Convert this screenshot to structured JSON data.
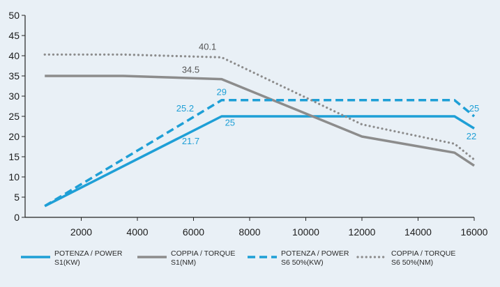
{
  "chart_data": {
    "type": "line",
    "title": "",
    "xlabel": "",
    "ylabel": "",
    "xlim": [
      0,
      16000
    ],
    "ylim": [
      0,
      50
    ],
    "xticks": [
      2000,
      4000,
      6000,
      8000,
      10000,
      12000,
      14000,
      16000
    ],
    "yticks": [
      0,
      5,
      10,
      15,
      20,
      25,
      30,
      35,
      40,
      45,
      50
    ],
    "grid": false,
    "legend_position": "bottom",
    "series": [
      {
        "name_lines": [
          "POTENZA / POWER",
          "S1(KW)"
        ],
        "color": "#1e9fd6",
        "style": "solid",
        "x": [
          700,
          7000,
          15300,
          16000
        ],
        "y": [
          2.8,
          25,
          25,
          22
        ]
      },
      {
        "name_lines": [
          "COPPIA / TORQUE",
          "S1(NM)"
        ],
        "color": "#8c8c8c",
        "style": "solid",
        "x": [
          700,
          3500,
          7000,
          12000,
          15300,
          16000
        ],
        "y": [
          35,
          35,
          34.2,
          20,
          16,
          12.8
        ]
      },
      {
        "name_lines": [
          "POTENZA / POWER",
          "S6 50%(KW)"
        ],
        "color": "#1e9fd6",
        "style": "dashed",
        "x": [
          700,
          7000,
          15300,
          16000
        ],
        "y": [
          2.8,
          29,
          29,
          25
        ]
      },
      {
        "name_lines": [
          "COPPIA / TORQUE",
          "S6 50%(NM)"
        ],
        "color": "#8c8c8c",
        "style": "dotted",
        "x": [
          700,
          3500,
          7000,
          12000,
          15300,
          16000
        ],
        "y": [
          40.3,
          40.3,
          39.6,
          23,
          18.2,
          14.3
        ]
      }
    ],
    "annotations": [
      {
        "text": "40.1",
        "x": 6500,
        "y": 41.5,
        "color": "#555555"
      },
      {
        "text": "34.5",
        "x": 5900,
        "y": 35.8,
        "color": "#555555"
      },
      {
        "text": "29",
        "x": 7000,
        "y": 30.3,
        "color": "#1e9fd6"
      },
      {
        "text": "25.2",
        "x": 5700,
        "y": 26.2,
        "color": "#1e9fd6"
      },
      {
        "text": "25",
        "x": 7300,
        "y": 22.7,
        "color": "#1e9fd6"
      },
      {
        "text": "21.7",
        "x": 5900,
        "y": 18.1,
        "color": "#1e9fd6"
      },
      {
        "text": "25",
        "x": 16000,
        "y": 26.2,
        "color": "#1e9fd6"
      },
      {
        "text": "22",
        "x": 15900,
        "y": 19.3,
        "color": "#1e9fd6"
      }
    ]
  }
}
